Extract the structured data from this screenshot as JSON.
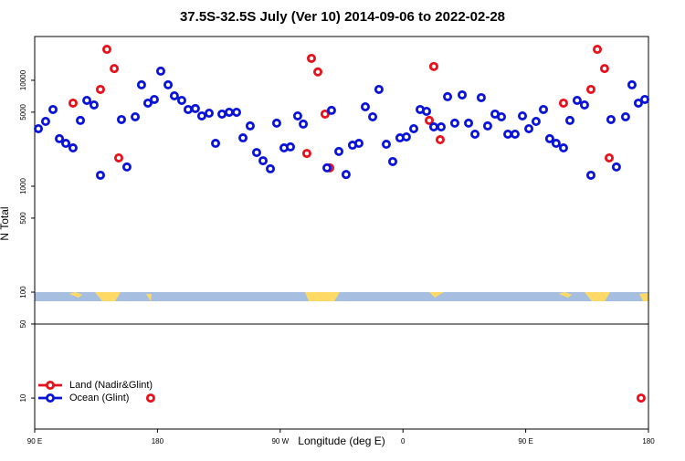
{
  "chart_data": {
    "type": "scatter",
    "title": "37.5S-32.5S July (Ver 10)   2014-09-06 to 2022-02-28",
    "x_label": "Longitude (deg E)",
    "y_label": "N Total",
    "xlim": [
      90,
      540
    ],
    "xticks": [
      {
        "value": 90,
        "label": "90 E"
      },
      180,
      {
        "value": 270,
        "label": "90 W"
      },
      {
        "value": 360,
        "label": "0"
      },
      {
        "value": 450,
        "label": "90 E"
      },
      {
        "value": 540,
        "label": "180"
      }
    ],
    "ylim": [
      5.1,
      25900
    ],
    "y_scale": "log",
    "yticks": [
      10,
      50,
      100,
      500,
      1000,
      5000,
      10000
    ],
    "legend": "lower left",
    "series": [
      {
        "name": "Land (Nadir&Glint)",
        "color": "#e8101a",
        "x": [
          118.1,
          138.2,
          142.9,
          148.3,
          151.6,
          175.0,
          289.5,
          292.9,
          297.6,
          302.9,
          306.3,
          379.3,
          382.6,
          387.3,
          477.7,
          497.8,
          502.5,
          507.8,
          511.2,
          534.6
        ],
        "values": [
          6090,
          8200,
          19600,
          12900,
          1850,
          10,
          2040,
          16100,
          12000,
          4800,
          1490,
          4180,
          13500,
          2750,
          6090,
          8200,
          19600,
          12900,
          1850,
          10
        ]
      },
      {
        "name": "Ocean (Glint)",
        "color": "#0a14d8",
        "x": [
          92.7,
          98.0,
          103.4,
          108.1,
          112.8,
          118.1,
          123.5,
          128.2,
          133.5,
          138.2,
          153.6,
          157.6,
          163.7,
          168.3,
          173.0,
          177.7,
          182.4,
          187.8,
          192.4,
          197.8,
          202.5,
          207.8,
          212.5,
          217.9,
          222.6,
          227.3,
          232.6,
          238.0,
          242.7,
          248.0,
          252.7,
          257.4,
          262.8,
          267.4,
          272.8,
          277.5,
          282.8,
          286.9,
          304.3,
          307.6,
          313.0,
          318.3,
          323.0,
          327.7,
          332.4,
          337.8,
          342.4,
          347.8,
          352.5,
          357.8,
          362.5,
          367.9,
          372.6,
          377.3,
          382.6,
          388.0,
          392.7,
          398.0,
          403.4,
          408.1,
          412.8,
          417.4,
          422.1,
          427.5,
          432.2,
          436.9,
          442.2,
          447.6,
          452.3,
          457.6,
          463.0,
          467.6,
          472.3,
          477.7,
          482.4,
          487.7,
          493.1,
          497.8,
          512.5,
          516.5,
          523.2,
          527.9,
          532.6,
          537.3
        ],
        "values": [
          3490,
          4090,
          5300,
          2810,
          2540,
          2300,
          4180,
          6460,
          5850,
          1270,
          4260,
          1520,
          4520,
          9060,
          6090,
          6590,
          12200,
          9060,
          7130,
          6460,
          5300,
          5410,
          4610,
          4890,
          2540,
          4800,
          4990,
          4990,
          2860,
          3710,
          2080,
          1740,
          1460,
          3940,
          2300,
          2350,
          4610,
          3860,
          1490,
          5200,
          2130,
          1290,
          2440,
          2540,
          5620,
          4520,
          8200,
          2490,
          1710,
          2860,
          2920,
          3490,
          5300,
          5090,
          3630,
          3630,
          7000,
          3940,
          7280,
          3940,
          3100,
          6860,
          3710,
          4800,
          4520,
          3100,
          3100,
          4610,
          3490,
          4090,
          5300,
          2810,
          2540,
          2300,
          4180,
          6460,
          5850,
          1270,
          4260,
          1520,
          4520,
          9060,
          6090,
          6590
        ]
      }
    ]
  }
}
